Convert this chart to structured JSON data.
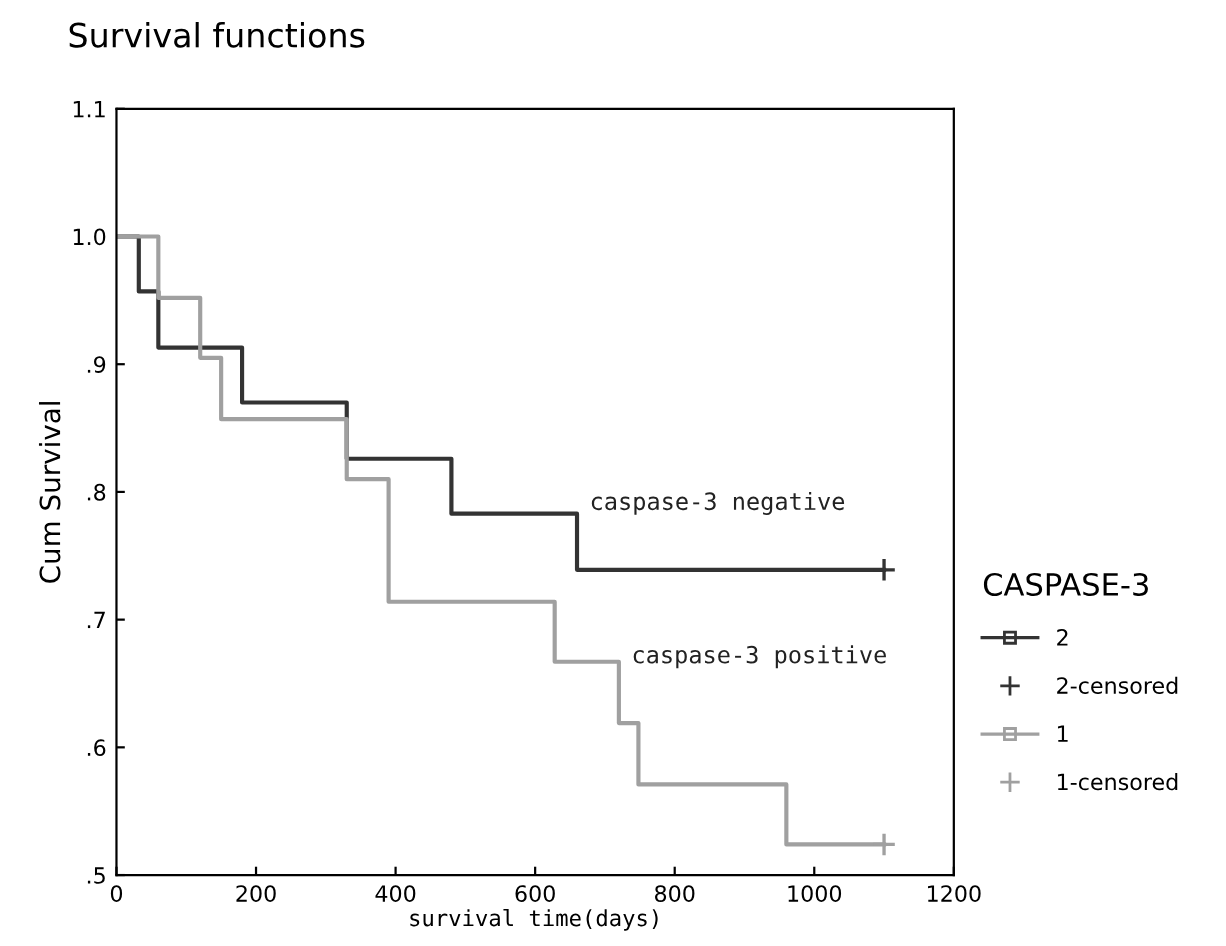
{
  "chart_data": {
    "type": "step",
    "title": "Survival functions",
    "xlabel": "survival time(days)",
    "ylabel": "Cum Survival",
    "legend_title": "CASPASE-3",
    "series": [
      {
        "name": "2",
        "color": "#333333",
        "x": [
          0,
          32,
          60,
          180,
          330,
          480,
          660,
          1100
        ],
        "values": [
          1.0,
          0.957,
          0.913,
          0.87,
          0.826,
          0.783,
          0.739,
          0.739
        ]
      },
      {
        "name": "2-censored",
        "type": "scatter",
        "marker": "cross",
        "color": "#333333",
        "x": [
          1100
        ],
        "values": [
          0.739
        ]
      },
      {
        "name": "1",
        "color": "#a0a0a0",
        "x": [
          0,
          60,
          120,
          150,
          330,
          390,
          628,
          720,
          748,
          960,
          1100
        ],
        "values": [
          1.0,
          0.952,
          0.905,
          0.857,
          0.81,
          0.714,
          0.667,
          0.619,
          0.571,
          0.524,
          0.524
        ]
      },
      {
        "name": "1-censored",
        "type": "scatter",
        "marker": "cross",
        "color": "#a0a0a0",
        "x": [
          1100
        ],
        "values": [
          0.524
        ]
      }
    ],
    "annotations": [
      "caspase-3 negative",
      "caspase-3 positive"
    ],
    "xlim": [
      0,
      1200
    ],
    "xticks": [
      0,
      200,
      400,
      600,
      800,
      1000,
      1200
    ],
    "ylim": [
      0.5,
      1.1
    ],
    "yticks": [
      {
        "value": 0.5,
        "label": ".5"
      },
      {
        "value": 0.6,
        "label": ".6"
      },
      {
        "value": 0.7,
        "label": ".7"
      },
      {
        "value": 0.8,
        "label": ".8"
      },
      {
        "value": 0.9,
        "label": ".9"
      },
      {
        "value": 1.0,
        "label": "1.0"
      },
      {
        "value": 1.1,
        "label": "1.1"
      }
    ],
    "grid": false,
    "legend": "right"
  }
}
